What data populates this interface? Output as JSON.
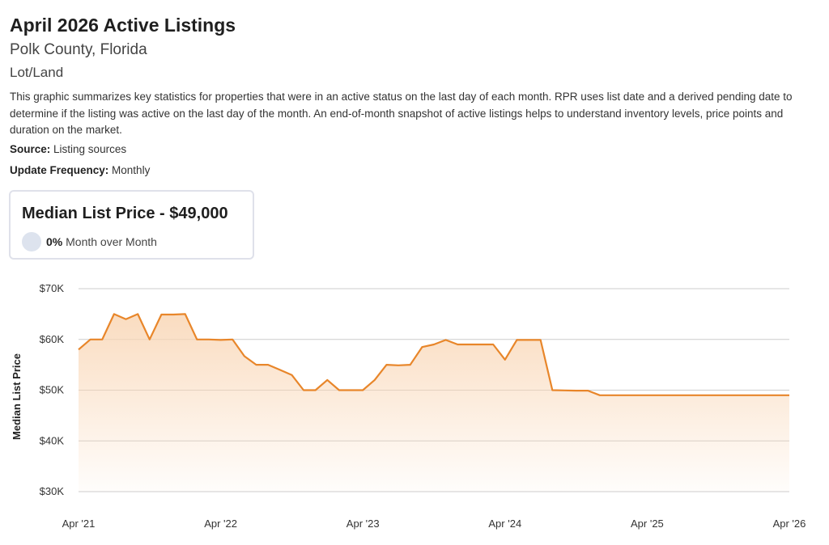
{
  "header": {
    "title": "April 2026 Active Listings",
    "subtitle": "Polk County, Florida",
    "category": "Lot/Land",
    "description": "This graphic summarizes key statistics for properties that were in an active status on the last day of each month. RPR uses list date and a derived pending date to determine if the listing was active on the last day of the month. An end-of-month snapshot of active listings helps to understand inventory levels, price points and duration on the market.",
    "source_label": "Source:",
    "source_value": "Listing sources",
    "frequency_label": "Update Frequency:",
    "frequency_value": "Monthly"
  },
  "card": {
    "title": "Median List Price - $49,000",
    "change_value": "0%",
    "change_text": "Month over Month"
  },
  "colors": {
    "line": "#e8862a",
    "area_top": "#f9d6b5",
    "grid": "#cccccc",
    "indicator": "#dde3ee"
  },
  "chart_data": {
    "type": "area",
    "title": "",
    "xlabel": "",
    "ylabel": "Median List Price",
    "ylim": [
      30000,
      70000
    ],
    "yticks": [
      70000,
      60000,
      50000,
      40000,
      30000
    ],
    "ytick_labels": [
      "$70K",
      "$60K",
      "$50K",
      "$40K",
      "$30K"
    ],
    "xticks": [
      "2021-04",
      "2022-04",
      "2023-04",
      "2024-04",
      "2025-04",
      "2026-04"
    ],
    "xtick_labels": [
      "Apr '21",
      "Apr '22",
      "Apr '23",
      "Apr '24",
      "Apr '25",
      "Apr '26"
    ],
    "grid": true,
    "series": [
      {
        "name": "",
        "x": [
          "2021-04",
          "2021-05",
          "2021-06",
          "2021-07",
          "2021-08",
          "2021-09",
          "2021-10",
          "2021-11",
          "2021-12",
          "2022-01",
          "2022-02",
          "2022-03",
          "2022-04",
          "2022-05",
          "2022-06",
          "2022-07",
          "2022-08",
          "2022-09",
          "2022-10",
          "2022-11",
          "2022-12",
          "2023-01",
          "2023-02",
          "2023-03",
          "2023-04",
          "2023-05",
          "2023-06",
          "2023-07",
          "2023-08",
          "2023-09",
          "2023-10",
          "2023-11",
          "2023-12",
          "2024-01",
          "2024-02",
          "2024-03",
          "2024-04",
          "2024-05",
          "2024-06",
          "2024-07",
          "2024-08",
          "2024-09",
          "2024-10",
          "2024-11",
          "2024-12",
          "2025-01",
          "2025-02",
          "2025-03",
          "2025-04",
          "2025-05",
          "2025-06",
          "2025-07",
          "2025-08",
          "2025-09",
          "2025-10",
          "2025-11",
          "2025-12",
          "2026-01",
          "2026-02",
          "2026-03",
          "2026-04"
        ],
        "y": [
          58000,
          60000,
          60000,
          65000,
          64000,
          65000,
          60000,
          64900,
          64900,
          65000,
          60000,
          60000,
          59900,
          60000,
          56700,
          55000,
          55000,
          54000,
          53000,
          50000,
          50000,
          52000,
          50000,
          50000,
          50000,
          52000,
          55000,
          54900,
          55000,
          58500,
          59000,
          59900,
          59000,
          59000,
          59000,
          59000,
          56000,
          59900,
          59900,
          59900,
          50000,
          49950,
          49900,
          49900,
          49000,
          49000,
          49000,
          49000,
          49000,
          49000,
          49000,
          49000,
          49000,
          49000,
          49000,
          49000,
          49000,
          49000,
          49000,
          49000,
          49000
        ]
      }
    ]
  }
}
